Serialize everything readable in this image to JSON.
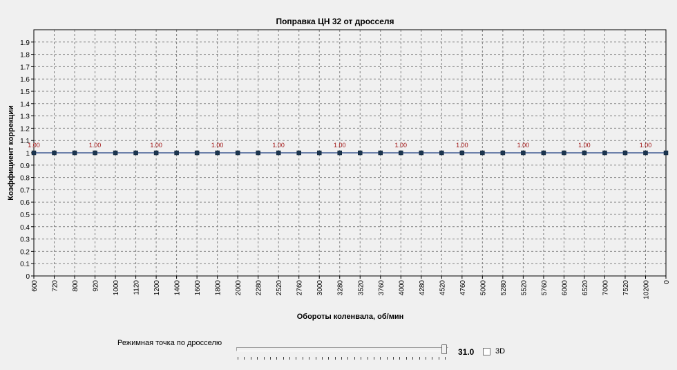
{
  "chart_data": {
    "type": "line",
    "title": "Поправка ЦН 32 от дросселя",
    "xlabel": "Обороты коленвала, об/мин",
    "ylabel": "Коэффициент коррекции",
    "categories": [
      "600",
      "720",
      "800",
      "920",
      "1000",
      "1120",
      "1200",
      "1400",
      "1600",
      "1800",
      "2000",
      "2280",
      "2520",
      "2760",
      "3000",
      "3280",
      "3520",
      "3760",
      "4000",
      "4280",
      "4520",
      "4760",
      "5000",
      "5280",
      "5520",
      "5760",
      "6000",
      "6520",
      "7000",
      "7520",
      "10200",
      "0"
    ],
    "series": [
      {
        "values": [
          1,
          1,
          1,
          1,
          1,
          1,
          1,
          1,
          1,
          1,
          1,
          1,
          1,
          1,
          1,
          1,
          1,
          1,
          1,
          1,
          1,
          1,
          1,
          1,
          1,
          1,
          1,
          1,
          1,
          1,
          1,
          1
        ]
      }
    ],
    "point_labels": [
      {
        "index": 0,
        "text": "1.00"
      },
      {
        "index": 3,
        "text": "1.00"
      },
      {
        "index": 6,
        "text": "1.00"
      },
      {
        "index": 9,
        "text": "1.00"
      },
      {
        "index": 12,
        "text": "1.00"
      },
      {
        "index": 15,
        "text": "1.00"
      },
      {
        "index": 18,
        "text": "1.00"
      },
      {
        "index": 21,
        "text": "1.00"
      },
      {
        "index": 24,
        "text": "1.00"
      },
      {
        "index": 27,
        "text": "1.00"
      },
      {
        "index": 30,
        "text": "1.00"
      }
    ],
    "yticks": [
      "0",
      "0.1",
      "0.2",
      "0.3",
      "0.4",
      "0.5",
      "0.6",
      "0.7",
      "0.8",
      "0.9",
      "1",
      "1.1",
      "1.2",
      "1.3",
      "1.4",
      "1.5",
      "1.6",
      "1.7",
      "1.8",
      "1.9"
    ],
    "ylim": [
      0,
      2
    ],
    "grid": true,
    "colors": {
      "line": "#1f3f7f",
      "marker": "#1b3550",
      "label": "#a01010",
      "grid": "#808080"
    }
  },
  "controls": {
    "mode_label": "Режимная точка по дросселю",
    "slider_value": "31.0",
    "slider_position": 1.0,
    "checkbox_3d_label": "3D",
    "checkbox_3d_checked": false
  }
}
